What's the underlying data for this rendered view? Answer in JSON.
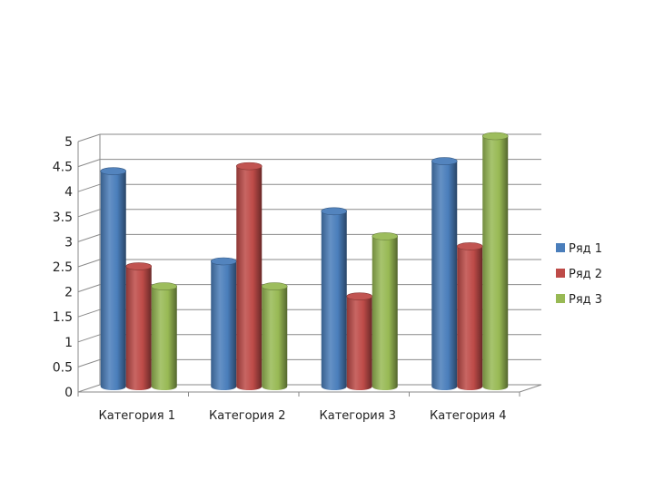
{
  "chart_data": {
    "type": "bar",
    "style": "3d-cylinder",
    "categories": [
      "Категория 1",
      "Категория 2",
      "Категория 3",
      "Категория 4"
    ],
    "series": [
      {
        "name": "Ряд 1",
        "values": [
          4.3,
          2.5,
          3.5,
          4.5
        ],
        "color": "#4a7ebb"
      },
      {
        "name": "Ряд 2",
        "values": [
          2.4,
          4.4,
          1.8,
          2.8
        ],
        "color": "#be4b48"
      },
      {
        "name": "Ряд 3",
        "values": [
          2.0,
          2.0,
          3.0,
          5.0
        ],
        "color": "#98b954"
      }
    ],
    "y_ticks": [
      "0",
      "0.5",
      "1",
      "1.5",
      "2",
      "2.5",
      "3",
      "3.5",
      "4",
      "4.5",
      "5"
    ],
    "ylim": [
      0,
      5
    ],
    "grid": true,
    "legend": "right"
  }
}
